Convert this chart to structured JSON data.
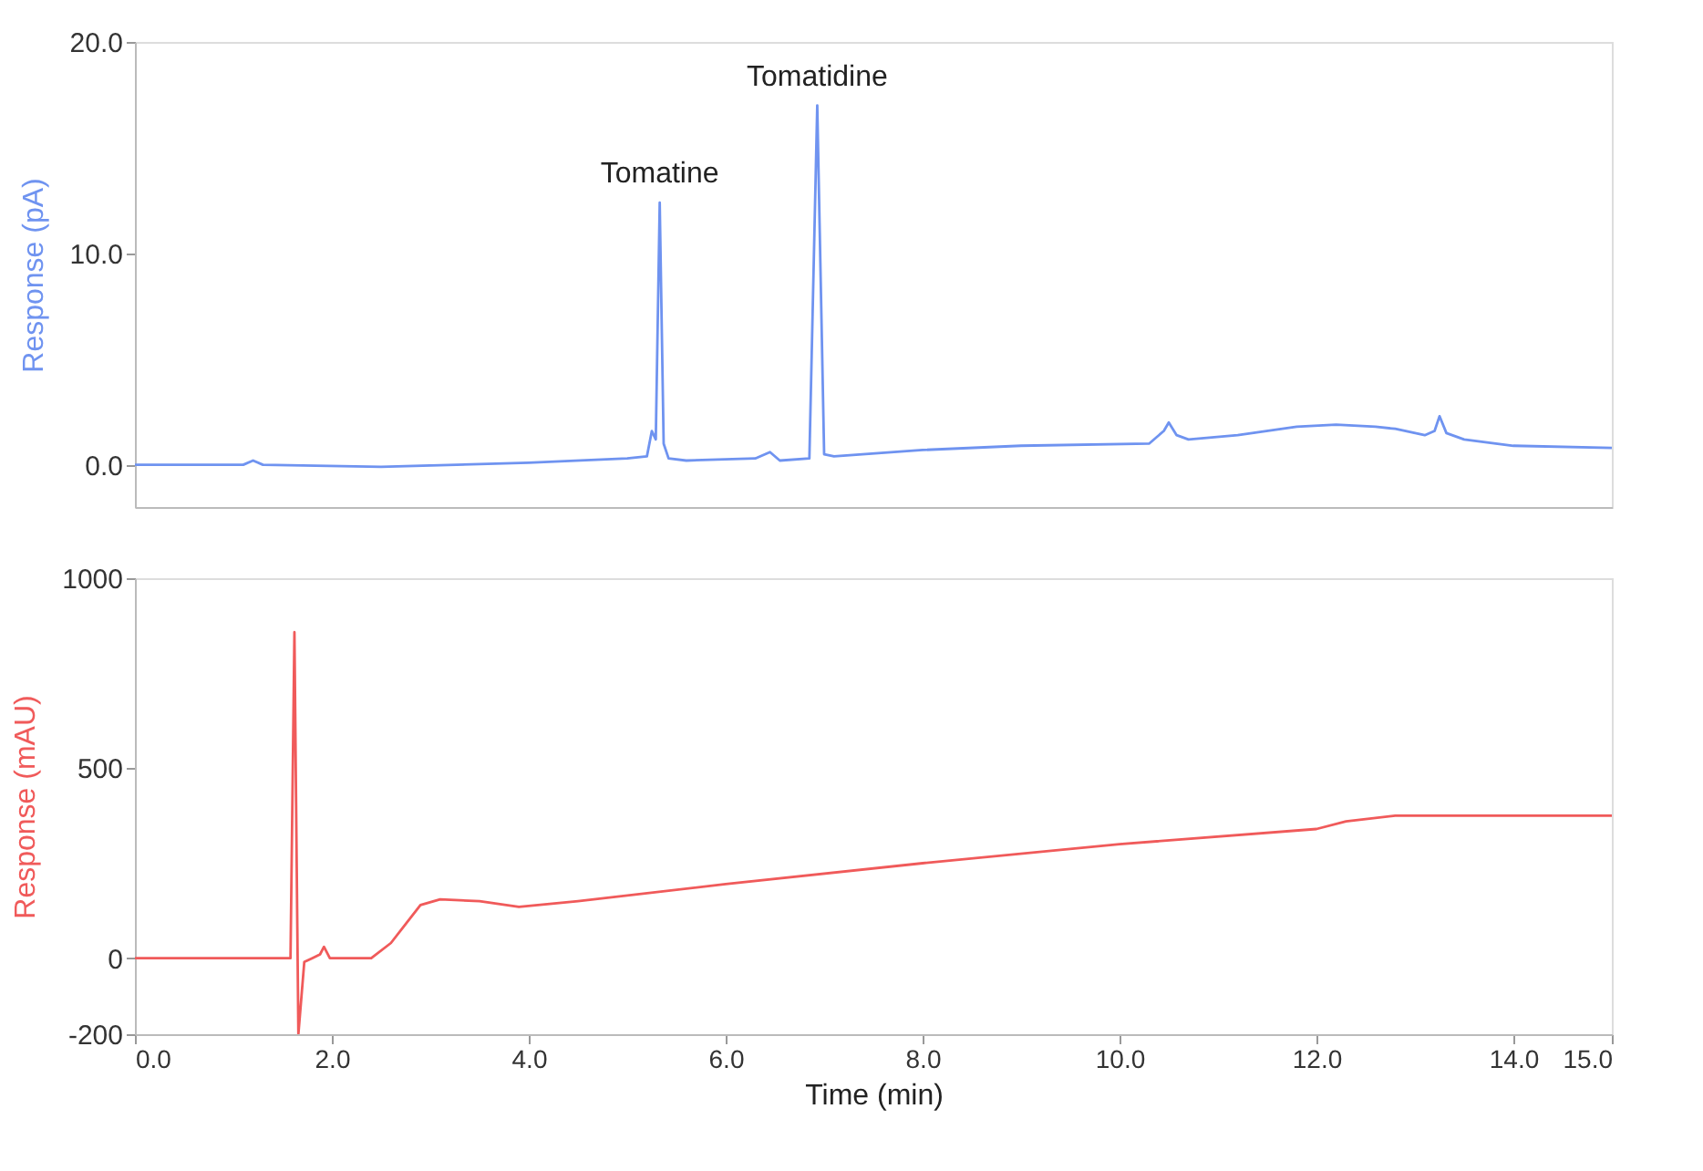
{
  "chart_data": [
    {
      "type": "line",
      "ylabel": "Response (pA)",
      "xlim": [
        0,
        15
      ],
      "ylim": [
        -2,
        20
      ],
      "tick_labels": "y",
      "grid": false,
      "marker": "none",
      "line_style": "solid",
      "yticks": [
        {
          "value": 0,
          "label": "0.0"
        },
        {
          "value": 10,
          "label": "10.0"
        },
        {
          "value": 20,
          "label": "20.0"
        }
      ],
      "annotations": [
        {
          "text": "Tomatine",
          "x": 5.33,
          "y": 12.4
        },
        {
          "text": "Tomatidine",
          "x": 6.93,
          "y": 17.0
        }
      ],
      "series": [
        {
          "color": "#6f93f0",
          "x": [
            0,
            1.1,
            1.2,
            1.3,
            2.5,
            4.0,
            5.0,
            5.2,
            5.25,
            5.29,
            5.33,
            5.37,
            5.42,
            5.6,
            6.3,
            6.45,
            6.55,
            6.85,
            6.93,
            7.0,
            7.1,
            8.0,
            9.0,
            10.3,
            10.45,
            10.5,
            10.58,
            10.7,
            11.2,
            11.8,
            12.2,
            12.6,
            12.8,
            13.1,
            13.2,
            13.25,
            13.32,
            13.5,
            14.0,
            15.0
          ],
          "values": [
            0,
            0,
            0.2,
            0,
            -0.1,
            0.1,
            0.3,
            0.4,
            1.6,
            1.2,
            12.4,
            1.0,
            0.3,
            0.2,
            0.3,
            0.6,
            0.2,
            0.3,
            17.0,
            0.5,
            0.4,
            0.7,
            0.9,
            1.0,
            1.6,
            2.0,
            1.4,
            1.2,
            1.4,
            1.8,
            1.9,
            1.8,
            1.7,
            1.4,
            1.6,
            2.3,
            1.5,
            1.2,
            0.9,
            0.8
          ]
        }
      ]
    },
    {
      "type": "line",
      "xlabel": "Time (min)",
      "ylabel": "Response (mAU)",
      "xlim": [
        0,
        15
      ],
      "ylim": [
        -200,
        1000
      ],
      "grid": false,
      "marker": "none",
      "line_style": "solid",
      "xticks": [
        {
          "value": 0,
          "label": "0.0"
        },
        {
          "value": 2,
          "label": "2.0"
        },
        {
          "value": 4,
          "label": "4.0"
        },
        {
          "value": 6,
          "label": "6.0"
        },
        {
          "value": 8,
          "label": "8.0"
        },
        {
          "value": 10,
          "label": "10.0"
        },
        {
          "value": 12,
          "label": "12.0"
        },
        {
          "value": 14,
          "label": "14.0"
        },
        {
          "value": 15,
          "label": "15.0"
        }
      ],
      "yticks": [
        -200,
        0,
        500,
        1000
      ],
      "series": [
        {
          "color": "#f05a5a",
          "x": [
            0,
            1.58,
            1.62,
            1.66,
            1.72,
            1.8,
            1.88,
            1.92,
            1.98,
            2.4,
            2.6,
            2.9,
            3.1,
            3.5,
            3.9,
            4.5,
            6.0,
            8.0,
            10.0,
            12.0,
            12.3,
            12.8,
            15.0
          ],
          "values": [
            0,
            0,
            858,
            -200,
            -10,
            0,
            10,
            30,
            0,
            0,
            40,
            140,
            155,
            150,
            135,
            150,
            195,
            250,
            300,
            340,
            360,
            375,
            375
          ]
        }
      ]
    }
  ]
}
